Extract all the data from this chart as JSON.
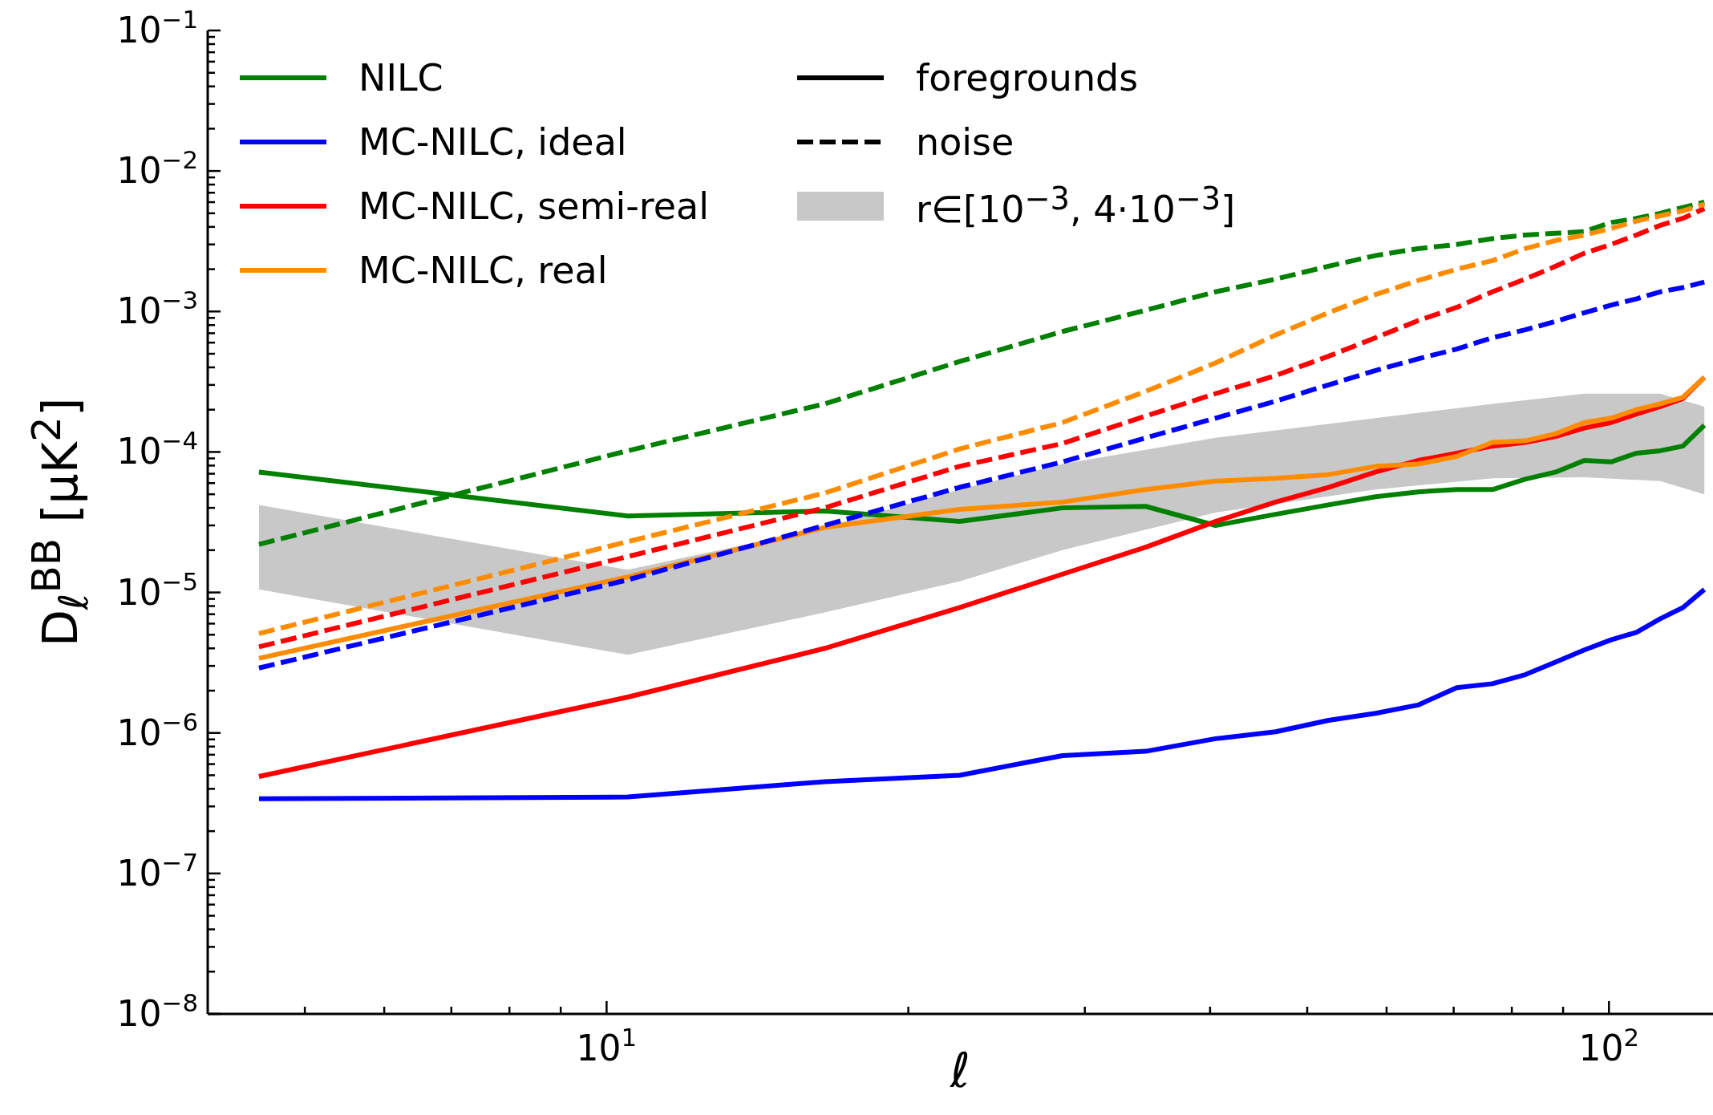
{
  "chart_data": {
    "type": "line",
    "xlabel": "ℓ",
    "ylabel": "D$_{ℓ}$$^{BB}$ [μK$^{2}$]",
    "log": "xy",
    "legend": "top left",
    "x": [
      4.5,
      10.5,
      16.5,
      22.5,
      28.5,
      34.5,
      40.5,
      46.5,
      52.5,
      58.5,
      64.5,
      70.5,
      76.5,
      82.5,
      88.5,
      94.5,
      100.5,
      106.5,
      112.5,
      118.5,
      124.5
    ],
    "xlim": [
      4,
      127
    ],
    "xticks": [
      {
        "value": 5,
        "label": null
      },
      {
        "value": 6,
        "label": null
      },
      {
        "value": 7,
        "label": null
      },
      {
        "value": 8,
        "label": null
      },
      {
        "value": 9,
        "label": null
      },
      {
        "value": 10,
        "label": "10$^{1}$"
      },
      {
        "value": 20,
        "label": null
      },
      {
        "value": 30,
        "label": null
      },
      {
        "value": 40,
        "label": null
      },
      {
        "value": 50,
        "label": null
      },
      {
        "value": 60,
        "label": null
      },
      {
        "value": 70,
        "label": null
      },
      {
        "value": 80,
        "label": null
      },
      {
        "value": 90,
        "label": null
      },
      {
        "value": 100,
        "label": "10$^{2}$"
      }
    ],
    "ylim": [
      1e-08,
      0.1
    ],
    "yticks": [
      {
        "value": 1e-08,
        "label": "10$^{−8}$"
      },
      {
        "value": 2e-08,
        "label": null
      },
      {
        "value": 3e-08,
        "label": null
      },
      {
        "value": 4e-08,
        "label": null
      },
      {
        "value": 5e-08,
        "label": null
      },
      {
        "value": 6e-08,
        "label": null
      },
      {
        "value": 7e-08,
        "label": null
      },
      {
        "value": 8e-08,
        "label": null
      },
      {
        "value": 9e-08,
        "label": null
      },
      {
        "value": 1e-07,
        "label": "10$^{−7}$"
      },
      {
        "value": 2e-07,
        "label": null
      },
      {
        "value": 3e-07,
        "label": null
      },
      {
        "value": 4e-07,
        "label": null
      },
      {
        "value": 5e-07,
        "label": null
      },
      {
        "value": 6e-07,
        "label": null
      },
      {
        "value": 7e-07,
        "label": null
      },
      {
        "value": 8e-07,
        "label": null
      },
      {
        "value": 9e-07,
        "label": null
      },
      {
        "value": 1e-06,
        "label": "10$^{−6}$"
      },
      {
        "value": 2e-06,
        "label": null
      },
      {
        "value": 3e-06,
        "label": null
      },
      {
        "value": 4e-06,
        "label": null
      },
      {
        "value": 5e-06,
        "label": null
      },
      {
        "value": 6e-06,
        "label": null
      },
      {
        "value": 7e-06,
        "label": null
      },
      {
        "value": 8e-06,
        "label": null
      },
      {
        "value": 9e-06,
        "label": null
      },
      {
        "value": 1e-05,
        "label": "10$^{−5}$"
      },
      {
        "value": 2e-05,
        "label": null
      },
      {
        "value": 3e-05,
        "label": null
      },
      {
        "value": 4e-05,
        "label": null
      },
      {
        "value": 5e-05,
        "label": null
      },
      {
        "value": 6e-05,
        "label": null
      },
      {
        "value": 7e-05,
        "label": null
      },
      {
        "value": 8e-05,
        "label": null
      },
      {
        "value": 9e-05,
        "label": null
      },
      {
        "value": 0.0001,
        "label": "10$^{−4}$"
      },
      {
        "value": 0.0002,
        "label": null
      },
      {
        "value": 0.0003,
        "label": null
      },
      {
        "value": 0.0004,
        "label": null
      },
      {
        "value": 0.0005,
        "label": null
      },
      {
        "value": 0.0006,
        "label": null
      },
      {
        "value": 0.0007,
        "label": null
      },
      {
        "value": 0.0008,
        "label": null
      },
      {
        "value": 0.0009,
        "label": null
      },
      {
        "value": 0.001,
        "label": "10$^{−3}$"
      },
      {
        "value": 0.002,
        "label": null
      },
      {
        "value": 0.003,
        "label": null
      },
      {
        "value": 0.004,
        "label": null
      },
      {
        "value": 0.005,
        "label": null
      },
      {
        "value": 0.006,
        "label": null
      },
      {
        "value": 0.007,
        "label": null
      },
      {
        "value": 0.008,
        "label": null
      },
      {
        "value": 0.009,
        "label": null
      },
      {
        "value": 0.01,
        "label": "10$^{−2}$"
      },
      {
        "value": 0.02,
        "label": null
      },
      {
        "value": 0.03,
        "label": null
      },
      {
        "value": 0.04,
        "label": null
      },
      {
        "value": 0.05,
        "label": null
      },
      {
        "value": 0.06,
        "label": null
      },
      {
        "value": 0.07,
        "label": null
      },
      {
        "value": 0.08,
        "label": null
      },
      {
        "value": 0.09,
        "label": null
      },
      {
        "value": 0.1,
        "label": "10$^{−1}$"
      }
    ],
    "series": [
      {
        "name": "NILC",
        "color": "#008000",
        "line_style": "solid",
        "values": [
          7.2e-05,
          3.5e-05,
          3.8e-05,
          3.2e-05,
          4e-05,
          4.1e-05,
          3e-05,
          3.6e-05,
          4.2e-05,
          4.8e-05,
          5.2e-05,
          5.4e-05,
          5.4e-05,
          6.4e-05,
          7.2e-05,
          8.7e-05,
          8.5e-05,
          9.8e-05,
          0.000102,
          0.00011,
          0.000155
        ]
      },
      {
        "name": "MC-NILC, ideal",
        "color": "#0000ff",
        "line_style": "solid",
        "values": [
          3.4e-07,
          3.5e-07,
          4.5e-07,
          5e-07,
          6.9e-07,
          7.4e-07,
          9.1e-07,
          1.02e-06,
          1.23e-06,
          1.38e-06,
          1.58e-06,
          2.1e-06,
          2.24e-06,
          2.6e-06,
          3.2e-06,
          3.9e-06,
          4.6e-06,
          5.2e-06,
          6.5e-06,
          7.8e-06,
          1.05e-05
        ]
      },
      {
        "name": "MC-NILC, semi-real",
        "color": "#ff0000",
        "line_style": "solid",
        "values": [
          4.9e-07,
          1.8e-06,
          4e-06,
          7.8e-06,
          1.35e-05,
          2.1e-05,
          3.2e-05,
          4.4e-05,
          5.6e-05,
          7.2e-05,
          8.7e-05,
          9.8e-05,
          0.00011,
          0.000117,
          0.000129,
          0.000148,
          0.000162,
          0.000186,
          0.00021,
          0.00024,
          0.00034
        ]
      },
      {
        "name": "MC-NILC, real",
        "color": "#ff8c00",
        "line_style": "solid",
        "values": [
          3.4e-06,
          1.29e-05,
          2.9e-05,
          3.9e-05,
          4.4e-05,
          5.4e-05,
          6.2e-05,
          6.5e-05,
          6.9e-05,
          7.9e-05,
          8.2e-05,
          9.3e-05,
          0.000117,
          0.00012,
          0.000135,
          0.000162,
          0.000174,
          0.0002,
          0.00022,
          0.000245,
          0.00034
        ]
      },
      {
        "color": "#008000",
        "line_style": "dashed",
        "values": [
          2.2e-05,
          0.000102,
          0.00022,
          0.00044,
          0.00072,
          0.00102,
          0.00138,
          0.0017,
          0.0021,
          0.0025,
          0.0028,
          0.003,
          0.0033,
          0.0035,
          0.0036,
          0.0037,
          0.0043,
          0.0046,
          0.005,
          0.0055,
          0.006
        ]
      },
      {
        "color": "#0000ff",
        "line_style": "dashed",
        "values": [
          2.9e-06,
          1.23e-05,
          3e-05,
          5.6e-05,
          8.5e-05,
          0.000126,
          0.000174,
          0.00023,
          0.0003,
          0.00038,
          0.00046,
          0.00054,
          0.00065,
          0.00074,
          0.00085,
          0.00098,
          0.00111,
          0.00123,
          0.00138,
          0.00148,
          0.00162
        ]
      },
      {
        "color": "#ff0000",
        "line_style": "dashed",
        "values": [
          4.1e-06,
          1.8e-05,
          4e-05,
          7.9e-05,
          0.000115,
          0.00018,
          0.00026,
          0.00035,
          0.00048,
          0.00065,
          0.00086,
          0.00107,
          0.00138,
          0.0017,
          0.0021,
          0.0026,
          0.003,
          0.0035,
          0.0041,
          0.0046,
          0.0054
        ]
      },
      {
        "color": "#ff8c00",
        "line_style": "dashed",
        "values": [
          5.1e-06,
          2.3e-05,
          5.1e-05,
          0.000105,
          0.000162,
          0.00027,
          0.00043,
          0.00068,
          0.00098,
          0.00132,
          0.00166,
          0.002,
          0.0023,
          0.0028,
          0.0032,
          0.0035,
          0.0039,
          0.0044,
          0.0048,
          0.0052,
          0.0058
        ]
      },
      {
        "name": "foregrounds",
        "color": "#000000",
        "line_style": "solid",
        "values": [
          null,
          null,
          null,
          null,
          null,
          null,
          null,
          null,
          null,
          null,
          null,
          null,
          null,
          null,
          null,
          null,
          null,
          null,
          null,
          null,
          null
        ]
      },
      {
        "name": "noise",
        "color": "#000000",
        "line_style": "dashed",
        "values": [
          null,
          null,
          null,
          null,
          null,
          null,
          null,
          null,
          null,
          null,
          null,
          null,
          null,
          null,
          null,
          null,
          null,
          null,
          null,
          null,
          null
        ]
      },
      {
        "name": "r∈[10$^{−3}$, 4·10$^{−3}$]",
        "type": "area",
        "color": "#c8c8c8",
        "x": [
          4.5,
          10.5,
          16.5,
          22.5,
          28.5,
          40.5,
          58.5,
          76.5,
          94.5,
          112.5,
          124.5
        ],
        "values": [
          null,
          null,
          null,
          null,
          null,
          null,
          null,
          null,
          null,
          null,
          null
        ],
        "lower": [
          1.05e-05,
          3.6e-06,
          7.2e-06,
          1.2e-05,
          2e-05,
          3.7e-05,
          5.4e-05,
          6.5e-05,
          6.6e-05,
          6.2e-05,
          5e-05
        ],
        "upper": [
          4.2e-05,
          1.45e-05,
          2.9e-05,
          5.4e-05,
          8.2e-05,
          0.000126,
          0.000174,
          0.00022,
          0.00026,
          0.00026,
          0.00021
        ]
      }
    ]
  }
}
